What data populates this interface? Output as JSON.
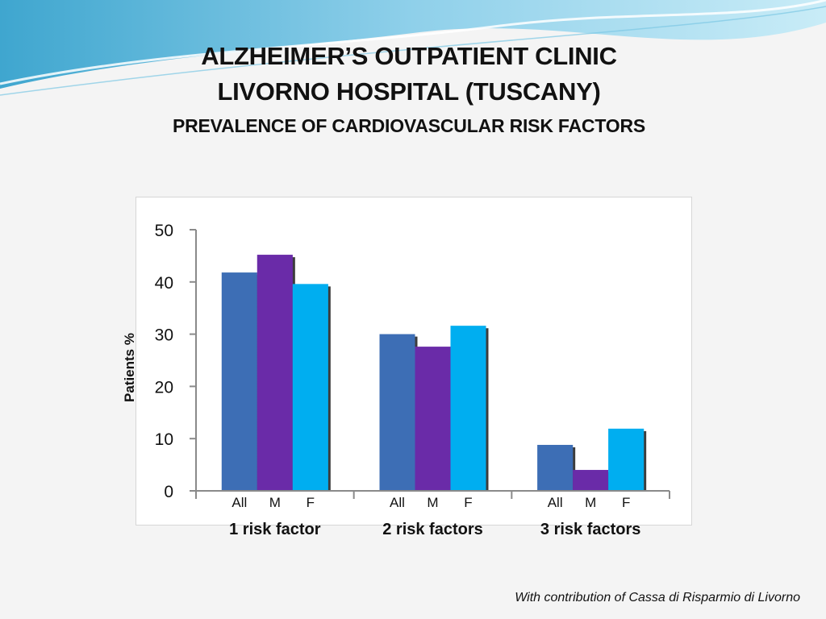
{
  "slide": {
    "title_lines": [
      "ALZHEIMER’S OUTPATIENT CLINIC",
      "LIVORNO HOSPITAL (TUSCANY)"
    ],
    "subtitle": "PREVALENCE OF CARDIOVASCULAR RISK FACTORS",
    "footer": "With contribution of Cassa di Risparmio di Livorno"
  },
  "chart_data": {
    "type": "bar",
    "title": "",
    "xlabel": "",
    "ylabel": "Patients %",
    "ylim": [
      0,
      50
    ],
    "yticks": [
      0,
      10,
      20,
      30,
      40,
      50
    ],
    "grid": false,
    "categories": [
      "1 risk factor",
      "2 risk factors",
      "3 risk factors"
    ],
    "subcategories": [
      "All",
      "M",
      "F"
    ],
    "series": [
      {
        "key": "All",
        "values": [
          41.8,
          30.0,
          8.8
        ],
        "color": "#3d6eb5"
      },
      {
        "key": "M",
        "values": [
          45.2,
          27.6,
          4.0
        ],
        "color": "#6a2ba8"
      },
      {
        "key": "F",
        "values": [
          39.6,
          31.6,
          11.9
        ],
        "color": "#00aef0"
      }
    ]
  }
}
